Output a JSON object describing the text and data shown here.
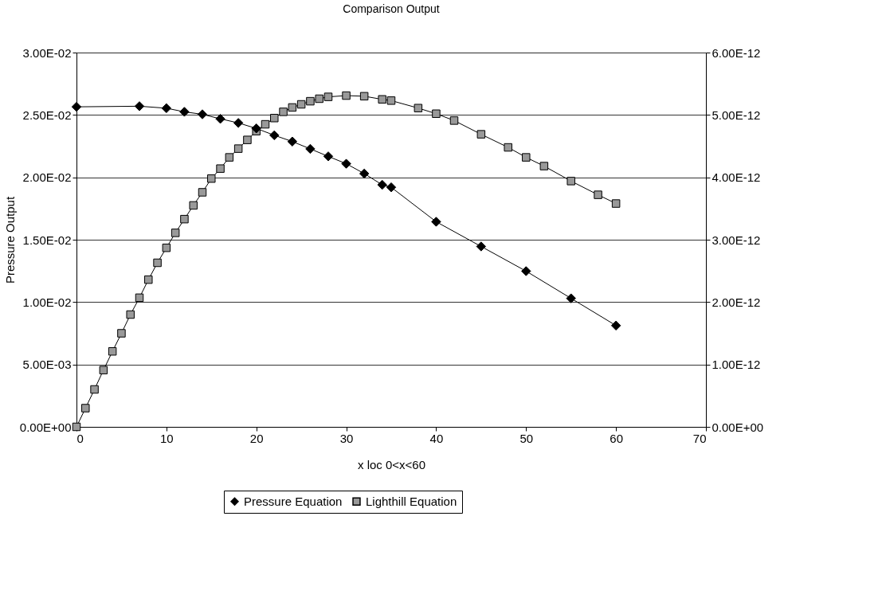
{
  "chart_data": {
    "type": "line",
    "title": "Comparison Output",
    "xlabel": "x loc 0<x<60",
    "ylabel": "Pressure Output",
    "series": [
      {
        "name": "Pressure Equation",
        "color": "#000000",
        "marker": "diamond",
        "x": [
          0,
          7,
          10,
          12,
          14,
          16,
          18,
          20,
          22,
          24,
          26,
          28,
          30,
          32,
          34,
          35,
          40,
          45,
          50,
          55,
          60
        ],
        "values": [
          0.02565,
          0.0257,
          0.02554,
          0.02525,
          0.02505,
          0.02469,
          0.02436,
          0.02392,
          0.02337,
          0.02287,
          0.02228,
          0.02168,
          0.02109,
          0.0203,
          0.0194,
          0.0192,
          0.01644,
          0.01446,
          0.01248,
          0.0103,
          0.00812
        ]
      },
      {
        "name": "Lighthill Equation",
        "color": "#999999",
        "marker": "square",
        "axis": "y2",
        "x": [
          0,
          1,
          2,
          3,
          4,
          5,
          6,
          7,
          8,
          9,
          10,
          11,
          12,
          13,
          14,
          15,
          16,
          17,
          18,
          19,
          20,
          21,
          22,
          23,
          24,
          25,
          26,
          27,
          28,
          30,
          32,
          34,
          35,
          38,
          40,
          42,
          45,
          48,
          50,
          52,
          55,
          58,
          60
        ],
        "values": [
          0,
          3e-13,
          6e-13,
          9.1e-13,
          1.21e-12,
          1.5e-12,
          1.8e-12,
          2.07e-12,
          2.36e-12,
          2.63e-12,
          2.87e-12,
          3.11e-12,
          3.33e-12,
          3.55e-12,
          3.76e-12,
          3.98e-12,
          4.14e-12,
          4.32e-12,
          4.46e-12,
          4.6e-12,
          4.74e-12,
          4.85e-12,
          4.95e-12,
          5.05e-12,
          5.12e-12,
          5.17e-12,
          5.22e-12,
          5.26e-12,
          5.29e-12,
          5.31e-12,
          5.3e-12,
          5.25e-12,
          5.23e-12,
          5.11e-12,
          5.02e-12,
          4.91e-12,
          4.69e-12,
          4.48e-12,
          4.32e-12,
          4.18e-12,
          3.94e-12,
          3.72e-12,
          3.58e-12
        ]
      }
    ],
    "xlim": [
      0,
      70
    ],
    "xticks": [
      0,
      10,
      20,
      30,
      40,
      50,
      60,
      70
    ],
    "ylim": [
      0,
      0.03
    ],
    "yticks": [
      {
        "value": 0,
        "label": "0.00E+00"
      },
      {
        "value": 0.005,
        "label": "5.00E-03"
      },
      {
        "value": 0.01,
        "label": "1.00E-02"
      },
      {
        "value": 0.015,
        "label": "1.50E-02"
      },
      {
        "value": 0.02,
        "label": "2.00E-02"
      },
      {
        "value": 0.025,
        "label": "2.50E-02"
      },
      {
        "value": 0.03,
        "label": "3.00E-02"
      }
    ],
    "y2lim": [
      0,
      6e-12
    ],
    "y2ticks": [
      {
        "value": 0,
        "label": "0.00E+00"
      },
      {
        "value": 1e-12,
        "label": "1.00E-12"
      },
      {
        "value": 2e-12,
        "label": "2.00E-12"
      },
      {
        "value": 3e-12,
        "label": "3.00E-12"
      },
      {
        "value": 4e-12,
        "label": "4.00E-12"
      },
      {
        "value": 5e-12,
        "label": "5.00E-12"
      },
      {
        "value": 6e-12,
        "label": "6.00E-12"
      }
    ],
    "grid": "y",
    "legend": "bottom",
    "line_style": "solid"
  }
}
